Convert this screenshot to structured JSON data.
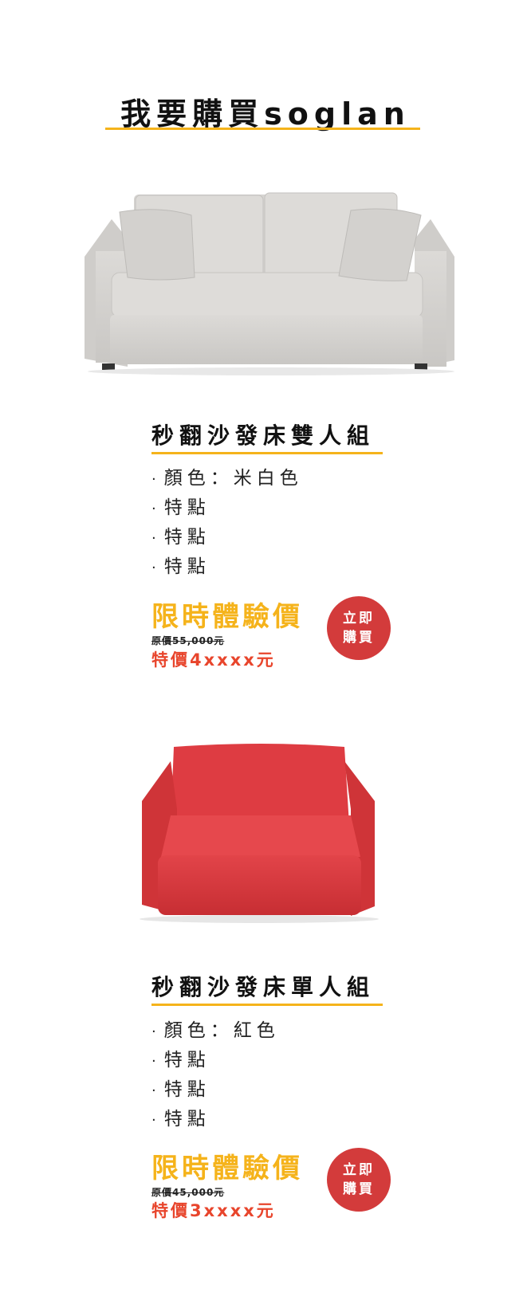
{
  "page": {
    "title": "我要購買soglan"
  },
  "products": [
    {
      "name": "秒翻沙發床雙人組",
      "features": [
        "顏色：米白色",
        "特點",
        "特點",
        "特點"
      ],
      "promo_label": "限時體驗價",
      "original_price": "原價55,000元",
      "special_price": "特價4xxxx元",
      "buy_button": [
        "立即",
        "購買"
      ],
      "colors": {
        "body": "#d8d6d3",
        "accent": "#f5b31b",
        "price": "#e8452c",
        "button": "#d33b3b"
      },
      "image_icon": "sofa-double-icon"
    },
    {
      "name": "秒翻沙發床單人組",
      "features": [
        "顏色：紅色",
        "特點",
        "特點",
        "特點"
      ],
      "promo_label": "限時體驗價",
      "original_price": "原價45,000元",
      "special_price": "特價3xxxx元",
      "buy_button": [
        "立即",
        "購買"
      ],
      "colors": {
        "body": "#d93a3f",
        "accent": "#f5b31b",
        "price": "#e8452c",
        "button": "#d33b3b"
      },
      "image_icon": "sofa-single-icon"
    }
  ]
}
